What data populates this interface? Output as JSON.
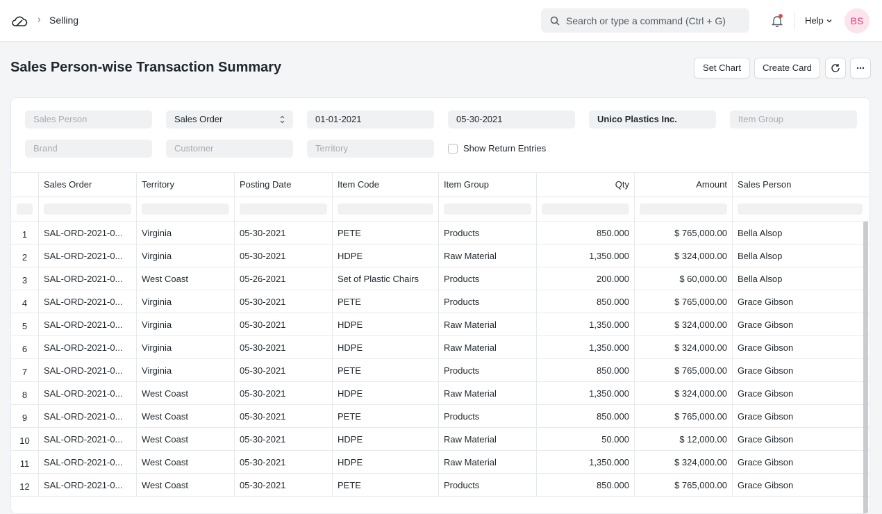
{
  "navbar": {
    "breadcrumb_sep": "›",
    "breadcrumb": "Selling",
    "search_placeholder": "Search or type a command (Ctrl + G)",
    "help_label": "Help",
    "avatar_initials": "BS"
  },
  "page": {
    "title": "Sales Person-wise Transaction Summary",
    "buttons": {
      "set_chart": "Set Chart",
      "create_card": "Create Card"
    }
  },
  "filters": {
    "sales_person": "Sales Person",
    "doc_type": "Sales Order",
    "from_date": "01-01-2021",
    "to_date": "05-30-2021",
    "company": "Unico Plastics Inc.",
    "item_group": "Item Group",
    "brand": "Brand",
    "customer": "Customer",
    "territory": "Territory",
    "show_return_entries": "Show Return Entries"
  },
  "table": {
    "headers": [
      "Sales Order",
      "Territory",
      "Posting Date",
      "Item Code",
      "Item Group",
      "Qty",
      "Amount",
      "Sales Person"
    ],
    "rows": [
      {
        "idx": "1",
        "order": "SAL-ORD-2021-0...",
        "territory": "Virginia",
        "date": "05-30-2021",
        "item": "PETE",
        "group": "Products",
        "qty": "850.000",
        "amount": "$ 765,000.00",
        "person": "Bella Alsop"
      },
      {
        "idx": "2",
        "order": "SAL-ORD-2021-0...",
        "territory": "Virginia",
        "date": "05-30-2021",
        "item": "HDPE",
        "group": "Raw Material",
        "qty": "1,350.000",
        "amount": "$ 324,000.00",
        "person": "Bella Alsop"
      },
      {
        "idx": "3",
        "order": "SAL-ORD-2021-0...",
        "territory": "West Coast",
        "date": "05-26-2021",
        "item": "Set of Plastic Chairs",
        "group": "Products",
        "qty": "200.000",
        "amount": "$ 60,000.00",
        "person": "Bella Alsop"
      },
      {
        "idx": "4",
        "order": "SAL-ORD-2021-0...",
        "territory": "Virginia",
        "date": "05-30-2021",
        "item": "PETE",
        "group": "Products",
        "qty": "850.000",
        "amount": "$ 765,000.00",
        "person": "Grace Gibson"
      },
      {
        "idx": "5",
        "order": "SAL-ORD-2021-0...",
        "territory": "Virginia",
        "date": "05-30-2021",
        "item": "HDPE",
        "group": "Raw Material",
        "qty": "1,350.000",
        "amount": "$ 324,000.00",
        "person": "Grace Gibson"
      },
      {
        "idx": "6",
        "order": "SAL-ORD-2021-0...",
        "territory": "Virginia",
        "date": "05-30-2021",
        "item": "HDPE",
        "group": "Raw Material",
        "qty": "1,350.000",
        "amount": "$ 324,000.00",
        "person": "Grace Gibson"
      },
      {
        "idx": "7",
        "order": "SAL-ORD-2021-0...",
        "territory": "Virginia",
        "date": "05-30-2021",
        "item": "PETE",
        "group": "Products",
        "qty": "850.000",
        "amount": "$ 765,000.00",
        "person": "Grace Gibson"
      },
      {
        "idx": "8",
        "order": "SAL-ORD-2021-0...",
        "territory": "West Coast",
        "date": "05-30-2021",
        "item": "HDPE",
        "group": "Raw Material",
        "qty": "1,350.000",
        "amount": "$ 324,000.00",
        "person": "Grace Gibson"
      },
      {
        "idx": "9",
        "order": "SAL-ORD-2021-0...",
        "territory": "West Coast",
        "date": "05-30-2021",
        "item": "PETE",
        "group": "Products",
        "qty": "850.000",
        "amount": "$ 765,000.00",
        "person": "Grace Gibson"
      },
      {
        "idx": "10",
        "order": "SAL-ORD-2021-0...",
        "territory": "West Coast",
        "date": "05-30-2021",
        "item": "HDPE",
        "group": "Raw Material",
        "qty": "50.000",
        "amount": "$ 12,000.00",
        "person": "Grace Gibson"
      },
      {
        "idx": "11",
        "order": "SAL-ORD-2021-0...",
        "territory": "West Coast",
        "date": "05-30-2021",
        "item": "HDPE",
        "group": "Raw Material",
        "qty": "1,350.000",
        "amount": "$ 324,000.00",
        "person": "Grace Gibson"
      },
      {
        "idx": "12",
        "order": "SAL-ORD-2021-0...",
        "territory": "West Coast",
        "date": "05-30-2021",
        "item": "PETE",
        "group": "Products",
        "qty": "850.000",
        "amount": "$ 765,000.00",
        "person": "Grace Gibson"
      }
    ]
  },
  "colors": {
    "avatar_bg": "#fbe4ec",
    "avatar_text": "#e1407c",
    "notification_dot": "#e24c4c"
  }
}
